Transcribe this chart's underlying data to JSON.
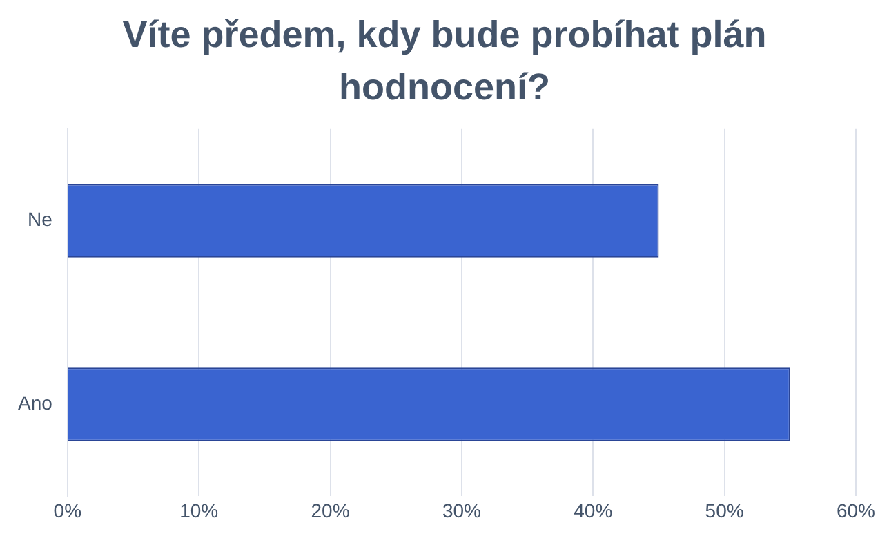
{
  "chart_data": {
    "type": "bar",
    "orientation": "horizontal",
    "title": "Víte předem, kdy bude probíhat plán hodnocení?",
    "categories": [
      "Ne",
      "Ano"
    ],
    "values": [
      45,
      55
    ],
    "color": "#3a64d0",
    "xlim": [
      0,
      60
    ],
    "xticks": [
      {
        "value": 0,
        "label": "0%"
      },
      {
        "value": 10,
        "label": "10%"
      },
      {
        "value": 20,
        "label": "20%"
      },
      {
        "value": 30,
        "label": "30%"
      },
      {
        "value": 40,
        "label": "40%"
      },
      {
        "value": 50,
        "label": "50%"
      },
      {
        "value": 60,
        "label": "60%"
      }
    ],
    "grid": "x"
  }
}
